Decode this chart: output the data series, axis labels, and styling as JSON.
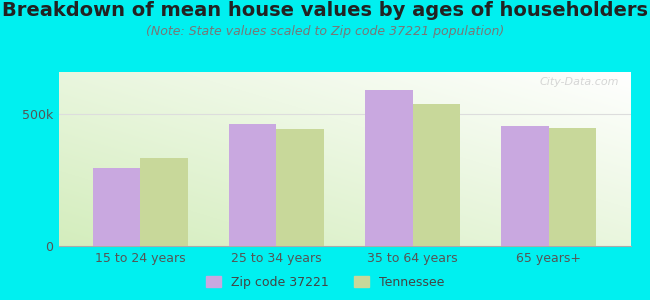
{
  "title": "Breakdown of mean house values by ages of householders",
  "subtitle": "(Note: State values scaled to Zip code 37221 population)",
  "categories": [
    "15 to 24 years",
    "25 to 34 years",
    "35 to 64 years",
    "65 years+"
  ],
  "zip_values": [
    295000,
    462000,
    590000,
    455000
  ],
  "state_values": [
    335000,
    445000,
    540000,
    448000
  ],
  "zip_color": "#c9a8e0",
  "state_color": "#c8d89a",
  "background_color": "#00f0f0",
  "yticks": [
    0,
    500000
  ],
  "ytick_labels": [
    "0",
    "500k"
  ],
  "ylim": [
    0,
    660000
  ],
  "legend_zip": "Zip code 37221",
  "legend_state": "Tennessee",
  "bar_width": 0.35,
  "title_fontsize": 14,
  "subtitle_fontsize": 9,
  "tick_fontsize": 9,
  "legend_fontsize": 9,
  "watermark": "City-Data.com",
  "grid_color": "#dddddd"
}
